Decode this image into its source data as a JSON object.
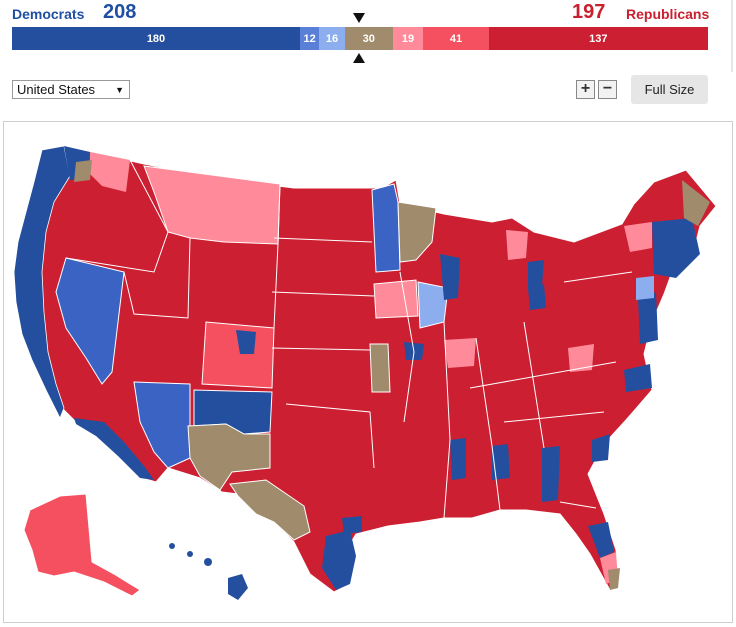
{
  "header": {
    "dem_label": "Democrats",
    "dem_total": "208",
    "rep_total": "197",
    "rep_label": "Republicans"
  },
  "bar": [
    {
      "label": "180",
      "value": 180,
      "color": "#244f9e"
    },
    {
      "label": "12",
      "value": 12,
      "color": "#5a7fd6"
    },
    {
      "label": "16",
      "value": 16,
      "color": "#8caeef"
    },
    {
      "label": "30",
      "value": 30,
      "color": "#a08b6c"
    },
    {
      "label": "19",
      "value": 19,
      "color": "#ff8a99"
    },
    {
      "label": "41",
      "value": 41,
      "color": "#f4505f"
    },
    {
      "label": "137",
      "value": 137,
      "color": "#cc1f32"
    }
  ],
  "controls": {
    "region_select": "United States",
    "zoom_in": "+",
    "zoom_out": "−",
    "full_size": "Full Size"
  },
  "colors": {
    "safe_dem": "#244f9e",
    "likely_dem": "#3a63c3",
    "lean_dem": "#8caeef",
    "tossup": "#a08b6c",
    "lean_rep": "#ff8a99",
    "likely_rep": "#f4505f",
    "safe_rep": "#cc1f32"
  }
}
